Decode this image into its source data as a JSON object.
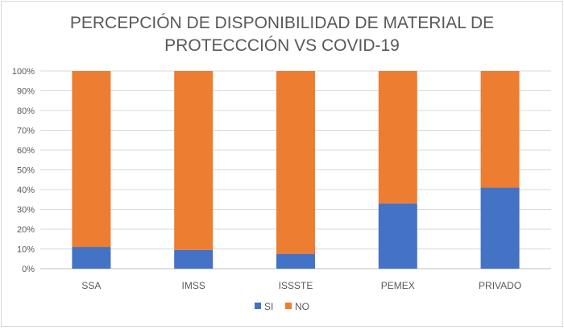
{
  "chart_data": {
    "type": "bar",
    "stacked": true,
    "percent": true,
    "title_lines": [
      "PERCEPCIÓN DE DISPONIBILIDAD DE MATERIAL DE",
      "PROTECCCIÓN VS COVID-19"
    ],
    "xlabel": "",
    "ylabel": "",
    "ylim": [
      0,
      100
    ],
    "yticks": [
      "0%",
      "10%",
      "20%",
      "30%",
      "40%",
      "50%",
      "60%",
      "70%",
      "80%",
      "90%",
      "100%"
    ],
    "categories": [
      "SSA",
      "IMSS",
      "ISSSTE",
      "PEMEX",
      "PRIVADO"
    ],
    "series": [
      {
        "name": "SI",
        "color": "#4472c4",
        "values": [
          11,
          9.5,
          7.5,
          33,
          41
        ]
      },
      {
        "name": "NO",
        "color": "#ed7d31",
        "values": [
          89,
          90.5,
          92.5,
          67,
          59
        ]
      }
    ],
    "grid": true,
    "legend_position": "bottom"
  }
}
